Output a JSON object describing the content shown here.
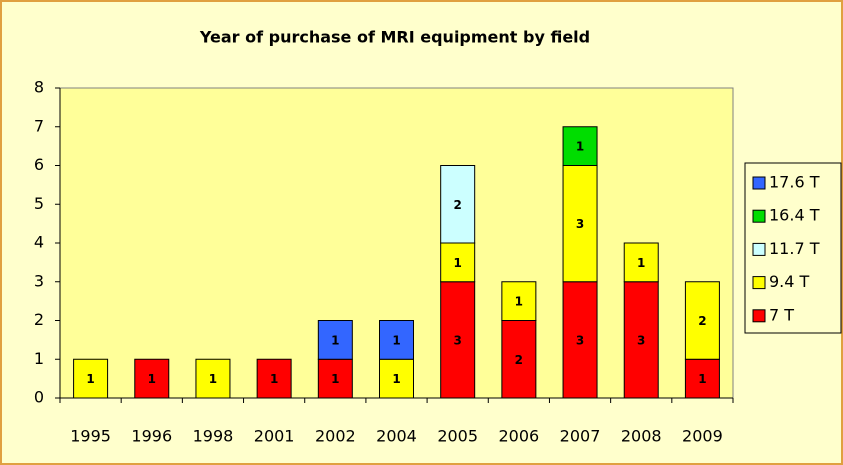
{
  "chart_data": {
    "type": "stacked_bar",
    "title": "Year of purchase of MRI equipment by field",
    "categories": [
      "1995",
      "1996",
      "1998",
      "2001",
      "2002",
      "2004",
      "2005",
      "2006",
      "2007",
      "2008",
      "2009"
    ],
    "series": [
      {
        "name": "7 T",
        "color": "#ff0000",
        "values": [
          null,
          1,
          null,
          1,
          1,
          null,
          3,
          2,
          3,
          3,
          1
        ]
      },
      {
        "name": "9.4 T",
        "color": "#ffff00",
        "values": [
          1,
          null,
          1,
          null,
          null,
          1,
          1,
          1,
          3,
          1,
          2
        ]
      },
      {
        "name": "11.7 T",
        "color": "#ccffff",
        "values": [
          null,
          null,
          null,
          null,
          null,
          null,
          2,
          null,
          null,
          null,
          null
        ]
      },
      {
        "name": "16.4 T",
        "color": "#00dd00",
        "values": [
          null,
          null,
          null,
          null,
          null,
          null,
          null,
          null,
          1,
          null,
          null
        ]
      },
      {
        "name": "17.6 T",
        "color": "#3366ff",
        "values": [
          null,
          null,
          null,
          null,
          1,
          1,
          null,
          null,
          null,
          null,
          null
        ]
      }
    ],
    "ylim": [
      0,
      8
    ],
    "yticks": [
      0,
      1,
      2,
      3,
      4,
      5,
      6,
      7,
      8
    ],
    "legend": "right"
  }
}
